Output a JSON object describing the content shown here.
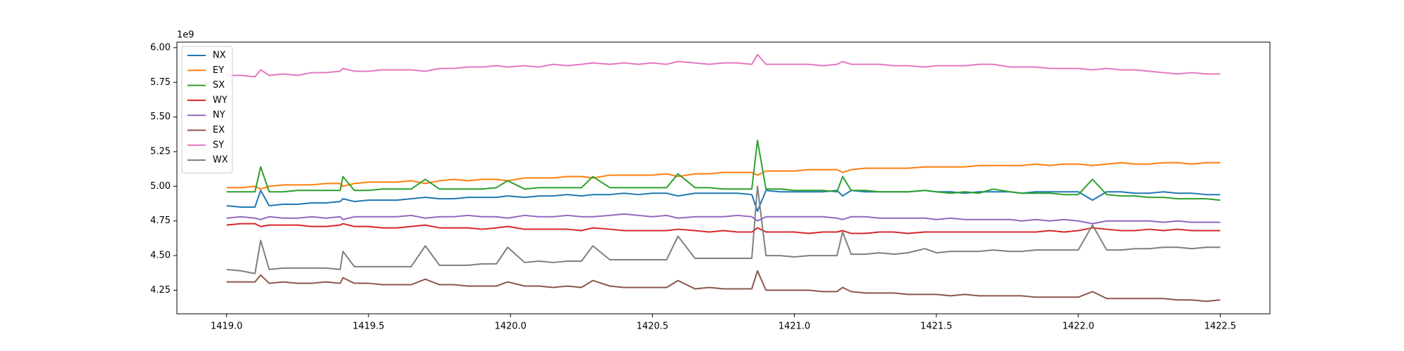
{
  "chart_data": {
    "type": "line",
    "y_offset_label": "1e9",
    "xlim": [
      1418.825,
      1422.675
    ],
    "ylim": [
      4.08,
      6.04
    ],
    "xticks": [
      {
        "value": 1419.0,
        "label": "1419.0"
      },
      {
        "value": 1419.5,
        "label": "1419.5"
      },
      {
        "value": 1420.0,
        "label": "1420.0"
      },
      {
        "value": 1420.5,
        "label": "1420.5"
      },
      {
        "value": 1421.0,
        "label": "1421.0"
      },
      {
        "value": 1421.5,
        "label": "1421.5"
      },
      {
        "value": 1422.0,
        "label": "1422.0"
      },
      {
        "value": 1422.5,
        "label": "1422.5"
      }
    ],
    "yticks": [
      {
        "value": 4.25,
        "label": "4.25"
      },
      {
        "value": 4.5,
        "label": "4.50"
      },
      {
        "value": 4.75,
        "label": "4.75"
      },
      {
        "value": 5.0,
        "label": "5.00"
      },
      {
        "value": 5.25,
        "label": "5.25"
      },
      {
        "value": 5.5,
        "label": "5.50"
      },
      {
        "value": 5.75,
        "label": "5.75"
      },
      {
        "value": 6.0,
        "label": "6.00"
      }
    ],
    "legend": "upper left",
    "x": [
      1419.0,
      1419.05,
      1419.1,
      1419.12,
      1419.15,
      1419.2,
      1419.25,
      1419.3,
      1419.35,
      1419.4,
      1419.41,
      1419.45,
      1419.5,
      1419.55,
      1419.6,
      1419.65,
      1419.7,
      1419.75,
      1419.8,
      1419.85,
      1419.9,
      1419.95,
      1419.99,
      1420.05,
      1420.1,
      1420.15,
      1420.2,
      1420.25,
      1420.29,
      1420.35,
      1420.4,
      1420.45,
      1420.5,
      1420.55,
      1420.59,
      1420.65,
      1420.7,
      1420.75,
      1420.8,
      1420.85,
      1420.87,
      1420.9,
      1420.95,
      1421.0,
      1421.05,
      1421.1,
      1421.15,
      1421.17,
      1421.2,
      1421.25,
      1421.3,
      1421.35,
      1421.4,
      1421.46,
      1421.5,
      1421.55,
      1421.6,
      1421.65,
      1421.7,
      1421.76,
      1421.8,
      1421.85,
      1421.9,
      1421.95,
      1422.0,
      1422.05,
      1422.1,
      1422.15,
      1422.2,
      1422.25,
      1422.3,
      1422.35,
      1422.4,
      1422.45,
      1422.5
    ],
    "series": [
      {
        "name": "NX",
        "color": "#1f77b4",
        "values": [
          4.86,
          4.85,
          4.85,
          4.97,
          4.86,
          4.87,
          4.87,
          4.88,
          4.88,
          4.89,
          4.91,
          4.89,
          4.9,
          4.9,
          4.9,
          4.91,
          4.92,
          4.91,
          4.91,
          4.92,
          4.92,
          4.92,
          4.93,
          4.92,
          4.93,
          4.93,
          4.94,
          4.93,
          4.94,
          4.94,
          4.95,
          4.94,
          4.95,
          4.95,
          4.93,
          4.95,
          4.95,
          4.95,
          4.95,
          4.94,
          4.82,
          4.97,
          4.96,
          4.96,
          4.96,
          4.96,
          4.97,
          4.93,
          4.97,
          4.96,
          4.96,
          4.96,
          4.96,
          4.97,
          4.96,
          4.96,
          4.95,
          4.96,
          4.96,
          4.96,
          4.95,
          4.96,
          4.96,
          4.96,
          4.96,
          4.9,
          4.96,
          4.96,
          4.95,
          4.95,
          4.96,
          4.95,
          4.95,
          4.94,
          4.94
        ]
      },
      {
        "name": "EY",
        "color": "#ff7f0e",
        "values": [
          4.99,
          4.99,
          5.0,
          4.98,
          5.0,
          5.01,
          5.01,
          5.01,
          5.02,
          5.02,
          5.0,
          5.02,
          5.03,
          5.03,
          5.03,
          5.04,
          5.02,
          5.04,
          5.05,
          5.04,
          5.05,
          5.05,
          5.04,
          5.06,
          5.06,
          5.06,
          5.07,
          5.07,
          5.06,
          5.08,
          5.08,
          5.08,
          5.08,
          5.09,
          5.07,
          5.09,
          5.09,
          5.1,
          5.1,
          5.1,
          5.08,
          5.11,
          5.11,
          5.11,
          5.12,
          5.12,
          5.12,
          5.1,
          5.12,
          5.13,
          5.13,
          5.13,
          5.13,
          5.14,
          5.14,
          5.14,
          5.14,
          5.15,
          5.15,
          5.15,
          5.15,
          5.16,
          5.15,
          5.16,
          5.16,
          5.15,
          5.16,
          5.17,
          5.16,
          5.16,
          5.17,
          5.17,
          5.16,
          5.17,
          5.17
        ]
      },
      {
        "name": "SX",
        "color": "#2ca02c",
        "values": [
          4.96,
          4.96,
          4.96,
          5.14,
          4.96,
          4.96,
          4.97,
          4.97,
          4.97,
          4.97,
          5.07,
          4.97,
          4.97,
          4.98,
          4.98,
          4.98,
          5.05,
          4.98,
          4.98,
          4.98,
          4.98,
          4.99,
          5.04,
          4.98,
          4.99,
          4.99,
          4.99,
          4.99,
          5.07,
          4.99,
          4.99,
          4.99,
          4.99,
          4.99,
          5.09,
          4.99,
          4.99,
          4.98,
          4.98,
          4.98,
          5.33,
          4.98,
          4.98,
          4.97,
          4.97,
          4.97,
          4.96,
          5.07,
          4.97,
          4.97,
          4.96,
          4.96,
          4.96,
          4.97,
          4.96,
          4.95,
          4.96,
          4.95,
          4.98,
          4.96,
          4.95,
          4.95,
          4.95,
          4.94,
          4.94,
          5.05,
          4.94,
          4.93,
          4.93,
          4.92,
          4.92,
          4.91,
          4.91,
          4.91,
          4.9
        ]
      },
      {
        "name": "WY",
        "color": "#d62728",
        "values": [
          4.72,
          4.73,
          4.73,
          4.71,
          4.72,
          4.72,
          4.72,
          4.71,
          4.71,
          4.72,
          4.73,
          4.71,
          4.71,
          4.7,
          4.7,
          4.71,
          4.72,
          4.7,
          4.7,
          4.7,
          4.69,
          4.7,
          4.71,
          4.69,
          4.69,
          4.69,
          4.69,
          4.68,
          4.7,
          4.69,
          4.68,
          4.68,
          4.68,
          4.68,
          4.69,
          4.68,
          4.67,
          4.68,
          4.67,
          4.67,
          4.7,
          4.67,
          4.67,
          4.67,
          4.66,
          4.67,
          4.67,
          4.68,
          4.66,
          4.66,
          4.67,
          4.67,
          4.66,
          4.67,
          4.67,
          4.67,
          4.67,
          4.67,
          4.67,
          4.67,
          4.67,
          4.67,
          4.68,
          4.67,
          4.68,
          4.7,
          4.69,
          4.68,
          4.68,
          4.69,
          4.68,
          4.69,
          4.68,
          4.68,
          4.68
        ]
      },
      {
        "name": "NY",
        "color": "#9467bd",
        "values": [
          4.77,
          4.78,
          4.77,
          4.76,
          4.78,
          4.77,
          4.77,
          4.78,
          4.77,
          4.78,
          4.76,
          4.78,
          4.78,
          4.78,
          4.78,
          4.79,
          4.77,
          4.78,
          4.78,
          4.79,
          4.78,
          4.78,
          4.77,
          4.79,
          4.78,
          4.78,
          4.79,
          4.78,
          4.78,
          4.79,
          4.8,
          4.79,
          4.78,
          4.79,
          4.77,
          4.78,
          4.78,
          4.78,
          4.79,
          4.78,
          4.75,
          4.78,
          4.78,
          4.78,
          4.78,
          4.78,
          4.77,
          4.76,
          4.78,
          4.78,
          4.77,
          4.77,
          4.77,
          4.77,
          4.76,
          4.77,
          4.76,
          4.76,
          4.76,
          4.76,
          4.75,
          4.76,
          4.75,
          4.76,
          4.75,
          4.73,
          4.75,
          4.75,
          4.75,
          4.75,
          4.74,
          4.75,
          4.74,
          4.74,
          4.74
        ]
      },
      {
        "name": "EX",
        "color": "#8c564b",
        "values": [
          4.31,
          4.31,
          4.31,
          4.36,
          4.3,
          4.31,
          4.3,
          4.3,
          4.31,
          4.3,
          4.34,
          4.3,
          4.3,
          4.29,
          4.29,
          4.29,
          4.33,
          4.29,
          4.29,
          4.28,
          4.28,
          4.28,
          4.31,
          4.28,
          4.28,
          4.27,
          4.28,
          4.27,
          4.32,
          4.28,
          4.27,
          4.27,
          4.27,
          4.27,
          4.32,
          4.26,
          4.27,
          4.26,
          4.26,
          4.26,
          4.39,
          4.25,
          4.25,
          4.25,
          4.25,
          4.24,
          4.24,
          4.27,
          4.24,
          4.23,
          4.23,
          4.23,
          4.22,
          4.22,
          4.22,
          4.21,
          4.22,
          4.21,
          4.21,
          4.21,
          4.21,
          4.2,
          4.2,
          4.2,
          4.2,
          4.24,
          4.19,
          4.19,
          4.19,
          4.19,
          4.19,
          4.18,
          4.18,
          4.17,
          4.18
        ]
      },
      {
        "name": "SY",
        "color": "#e377c2",
        "values": [
          5.8,
          5.8,
          5.79,
          5.84,
          5.8,
          5.81,
          5.8,
          5.82,
          5.82,
          5.83,
          5.85,
          5.83,
          5.83,
          5.84,
          5.84,
          5.84,
          5.83,
          5.85,
          5.85,
          5.86,
          5.86,
          5.87,
          5.86,
          5.87,
          5.86,
          5.88,
          5.87,
          5.88,
          5.89,
          5.88,
          5.89,
          5.88,
          5.89,
          5.88,
          5.9,
          5.89,
          5.88,
          5.89,
          5.89,
          5.88,
          5.95,
          5.88,
          5.88,
          5.88,
          5.88,
          5.87,
          5.88,
          5.9,
          5.88,
          5.88,
          5.88,
          5.87,
          5.87,
          5.86,
          5.87,
          5.87,
          5.87,
          5.88,
          5.88,
          5.86,
          5.86,
          5.86,
          5.85,
          5.85,
          5.85,
          5.84,
          5.85,
          5.84,
          5.84,
          5.83,
          5.82,
          5.81,
          5.82,
          5.81,
          5.81
        ]
      },
      {
        "name": "WX",
        "color": "#7f7f7f",
        "values": [
          4.4,
          4.39,
          4.37,
          4.61,
          4.4,
          4.41,
          4.41,
          4.41,
          4.41,
          4.4,
          4.53,
          4.42,
          4.42,
          4.42,
          4.42,
          4.42,
          4.57,
          4.43,
          4.43,
          4.43,
          4.44,
          4.44,
          4.56,
          4.45,
          4.46,
          4.45,
          4.46,
          4.46,
          4.57,
          4.47,
          4.47,
          4.47,
          4.47,
          4.47,
          4.64,
          4.48,
          4.48,
          4.48,
          4.48,
          4.48,
          5.0,
          4.5,
          4.5,
          4.49,
          4.5,
          4.5,
          4.5,
          4.67,
          4.51,
          4.51,
          4.52,
          4.51,
          4.52,
          4.55,
          4.52,
          4.53,
          4.53,
          4.53,
          4.54,
          4.53,
          4.53,
          4.54,
          4.54,
          4.54,
          4.54,
          4.72,
          4.54,
          4.54,
          4.55,
          4.55,
          4.56,
          4.56,
          4.55,
          4.56,
          4.56
        ]
      }
    ]
  }
}
